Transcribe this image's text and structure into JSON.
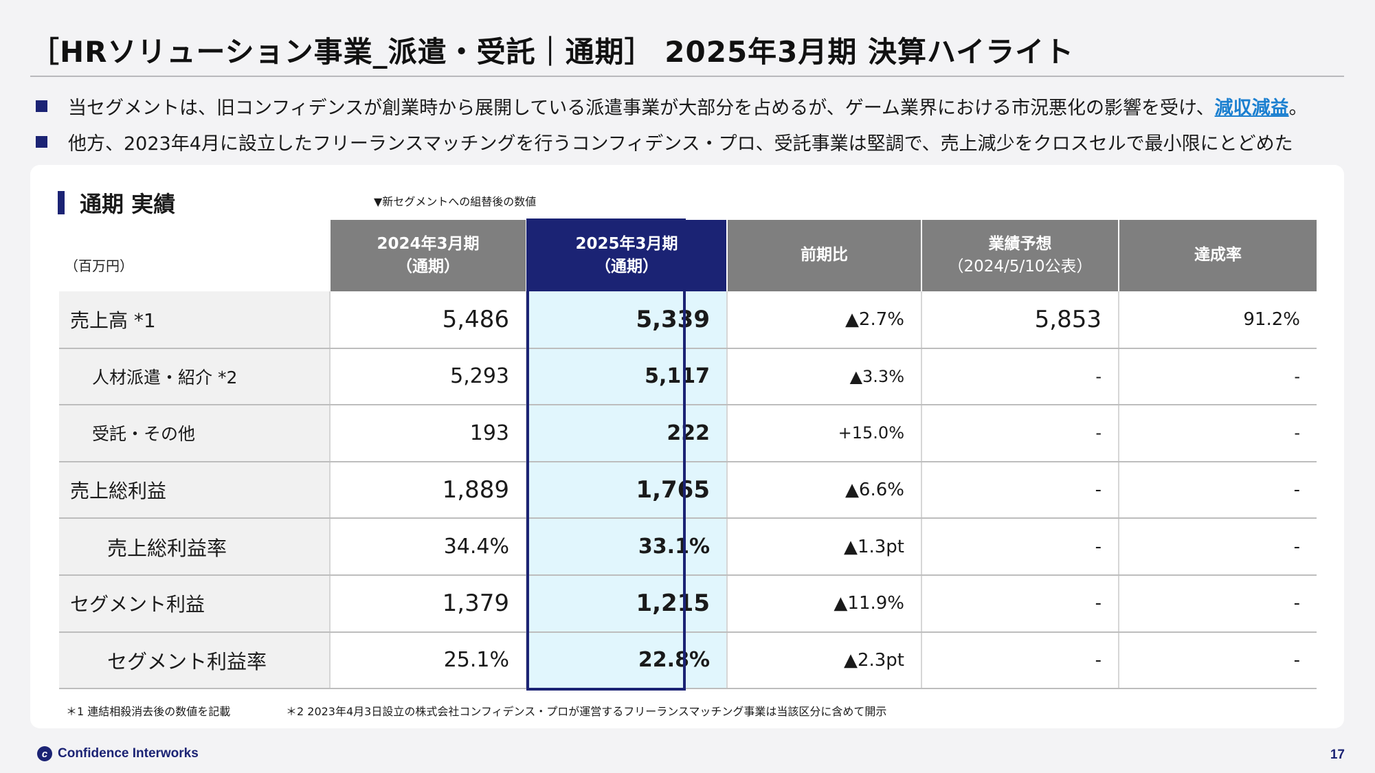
{
  "title": "［HRソリューション事業_派遣・受託｜通期］ 2025年3月期 決算ハイライト",
  "bullets": {
    "b1_text": "当セグメントは、旧コンフィデンスが創業時から展開している派遣事業が大部分を占めるが、ゲーム業界における市況悪化の影響を受け、",
    "b1_highlight": "減収減益",
    "b1_end": "。",
    "b2_text": "他方、2023年4月に設立したフリーランスマッチングを行うコンフィデンス・プロ、受託事業は堅調で、売上減少をクロスセルで最小限にとどめた"
  },
  "section_title": "通期 実績",
  "top_note": "▼新セグメントへの組替後の数値",
  "table": {
    "unit": "（百万円）",
    "headers": {
      "prev_1": "2024年3月期",
      "prev_2": "（通期）",
      "curr_1": "2025年3月期",
      "curr_2": "（通期）",
      "yoy": "前期比",
      "forecast_1": "業績予想",
      "forecast_2": "（2024/5/10公表）",
      "achieve": "達成率"
    },
    "rows": [
      {
        "label": "売上高 *1",
        "prev": "5,486",
        "curr": "5,339",
        "yoy": "▲2.7%",
        "forecast": "5,853",
        "achieve": "91.2%"
      },
      {
        "label": "人材派遣・紹介 *2",
        "prev": "5,293",
        "curr": "5,117",
        "yoy": "▲3.3%",
        "forecast": "-",
        "achieve": "-"
      },
      {
        "label": "受託・その他",
        "prev": "193",
        "curr": "222",
        "yoy": "+15.0%",
        "forecast": "-",
        "achieve": "-"
      },
      {
        "label": "売上総利益",
        "prev": "1,889",
        "curr": "1,765",
        "yoy": "▲6.6%",
        "forecast": "-",
        "achieve": "-"
      },
      {
        "label": "売上総利益率",
        "prev": "34.4%",
        "curr": "33.1%",
        "yoy": "▲1.3pt",
        "forecast": "-",
        "achieve": "-"
      },
      {
        "label": "セグメント利益",
        "prev": "1,379",
        "curr": "1,215",
        "yoy": "▲11.9%",
        "forecast": "-",
        "achieve": "-"
      },
      {
        "label": "セグメント利益率",
        "prev": "25.1%",
        "curr": "22.8%",
        "yoy": "▲2.3pt",
        "forecast": "-",
        "achieve": "-"
      }
    ]
  },
  "footnotes": {
    "f1": "＊1 連結相殺消去後の数値を記載",
    "f2": "＊2 2023年4月3日設立の株式会社コンフィデンス・プロが運営するフリーランスマッチング事業は当該区分に含めて開示"
  },
  "logo_text": "Confidence Interworks",
  "page_number": "17"
}
